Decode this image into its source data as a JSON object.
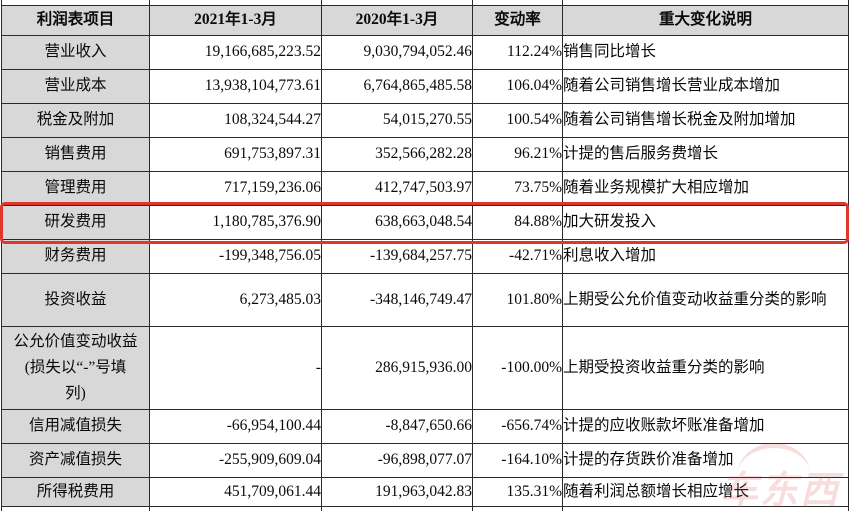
{
  "table": {
    "headers": [
      "利润表项目",
      "2021年1-3月",
      "2020年1-3月",
      "变动率",
      "重大变化说明"
    ],
    "rows": [
      {
        "item": "营业收入",
        "v2021": "19,166,685,223.52",
        "v2020": "9,030,794,052.46",
        "change": "112.24%",
        "note": "销售同比增长",
        "highlight": false
      },
      {
        "item": "营业成本",
        "v2021": "13,938,104,773.61",
        "v2020": "6,764,865,485.58",
        "change": "106.04%",
        "note": "随着公司销售增长营业成本增加",
        "highlight": false
      },
      {
        "item": "税金及附加",
        "v2021": "108,324,544.27",
        "v2020": "54,015,270.55",
        "change": "100.54%",
        "note": "随着公司销售增长税金及附加增加",
        "highlight": false
      },
      {
        "item": "销售费用",
        "v2021": "691,753,897.31",
        "v2020": "352,566,282.28",
        "change": "96.21%",
        "note": "计提的售后服务费增长",
        "highlight": false
      },
      {
        "item": "管理费用",
        "v2021": "717,159,236.06",
        "v2020": "412,747,503.97",
        "change": "73.75%",
        "note": "随着业务规模扩大相应增加",
        "highlight": false
      },
      {
        "item": "研发费用",
        "v2021": "1,180,785,376.90",
        "v2020": "638,663,048.54",
        "change": "84.88%",
        "note": "加大研发投入",
        "highlight": true
      },
      {
        "item": "财务费用",
        "v2021": "-199,348,756.05",
        "v2020": "-139,684,257.75",
        "change": "-42.71%",
        "note": "利息收入增加",
        "highlight": false
      },
      {
        "item": "投资收益",
        "v2021": "6,273,485.03",
        "v2020": "-348,146,749.47",
        "change": "101.80%",
        "note": "上期受公允价值变动收益重分类的影响",
        "highlight": false
      },
      {
        "item": "公允价值变动收益\n(损失以“-”号填\n列)",
        "v2021": "-",
        "v2020": "286,915,936.00",
        "change": "-100.00%",
        "note": "上期受投资收益重分类的影响",
        "highlight": false
      },
      {
        "item": "信用减值损失",
        "v2021": "-66,954,100.44",
        "v2020": "-8,847,650.66",
        "change": "-656.74%",
        "note": "计提的应收账款坏账准备增加",
        "highlight": false
      },
      {
        "item": "资产减值损失",
        "v2021": "-255,909,609.04",
        "v2020": "-96,898,077.07",
        "change": "-164.10%",
        "note": "计提的存货跌价准备增加",
        "highlight": false
      },
      {
        "item": "所得税费用",
        "v2021": "451,709,061.44",
        "v2020": "191,963,042.83",
        "change": "135.31%",
        "note": "随着利润总额增长相应增长",
        "highlight": false
      }
    ]
  },
  "annotation": {
    "highlight_color": "#e0372b"
  },
  "watermark": {
    "text": "车东西",
    "color": "#d43c3c"
  }
}
